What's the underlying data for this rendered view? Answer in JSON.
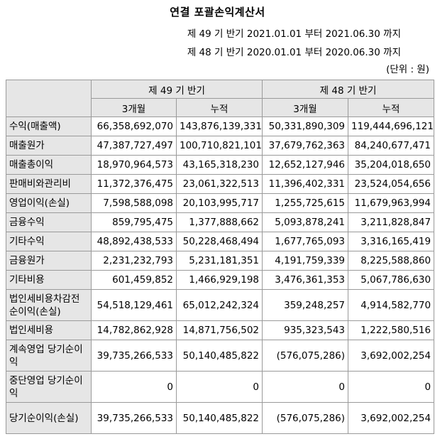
{
  "title": "연결 포괄손익계산서",
  "periods": [
    "제 49 기 반기 2021.01.01 부터 2021.06.30 까지",
    "제 48 기 반기 2020.01.01 부터 2020.06.30 까지"
  ],
  "unit": "(단위 : 원)",
  "header": {
    "group1": "제 49 기 반기",
    "group2": "제 48 기 반기",
    "sub": [
      "3개월",
      "누적",
      "3개월",
      "누적"
    ]
  },
  "rows": [
    {
      "label": "수익(매출액)",
      "values": [
        "66,358,692,070",
        "143,876,139,331",
        "50,331,890,309",
        "119,444,696,121"
      ]
    },
    {
      "label": "매출원가",
      "values": [
        "47,387,727,497",
        "100,710,821,101",
        "37,679,762,363",
        "84,240,677,471"
      ]
    },
    {
      "label": "매출총이익",
      "values": [
        "18,970,964,573",
        "43,165,318,230",
        "12,652,127,946",
        "35,204,018,650"
      ]
    },
    {
      "label": "판매비와관리비",
      "values": [
        "11,372,376,475",
        "23,061,322,513",
        "11,396,402,331",
        "23,524,054,656"
      ]
    },
    {
      "label": "영업이익(손실)",
      "values": [
        "7,598,588,098",
        "20,103,995,717",
        "1,255,725,615",
        "11,679,963,994"
      ]
    },
    {
      "label": "금융수익",
      "values": [
        "859,795,475",
        "1,377,888,662",
        "5,093,878,241",
        "3,211,828,847"
      ]
    },
    {
      "label": "기타수익",
      "values": [
        "48,892,438,533",
        "50,228,468,494",
        "1,677,765,093",
        "3,316,165,419"
      ]
    },
    {
      "label": "금융원가",
      "values": [
        "2,231,232,793",
        "5,231,181,351",
        "4,191,759,339",
        "8,225,588,860"
      ]
    },
    {
      "label": "기타비용",
      "values": [
        "601,459,852",
        "1,466,929,198",
        "3,476,361,353",
        "5,067,786,630"
      ]
    },
    {
      "label": "법인세비용차감전순이익(손실)",
      "values": [
        "54,518,129,461",
        "65,012,242,324",
        "359,248,257",
        "4,914,582,770"
      ]
    },
    {
      "label": "법인세비용",
      "values": [
        "14,782,862,928",
        "14,871,756,502",
        "935,323,543",
        "1,222,580,516"
      ]
    },
    {
      "label": "계속영업 당기순이익",
      "values": [
        "39,735,266,533",
        "50,140,485,822",
        "(576,075,286)",
        "3,692,002,254"
      ]
    },
    {
      "label": "중단영업 당기순이익",
      "values": [
        "0",
        "0",
        "0",
        "0"
      ]
    },
    {
      "label": "당기순이익(손실)",
      "values": [
        "39,735,266,533",
        "50,140,485,822",
        "(576,075,286)",
        "3,692,002,254"
      ]
    }
  ]
}
